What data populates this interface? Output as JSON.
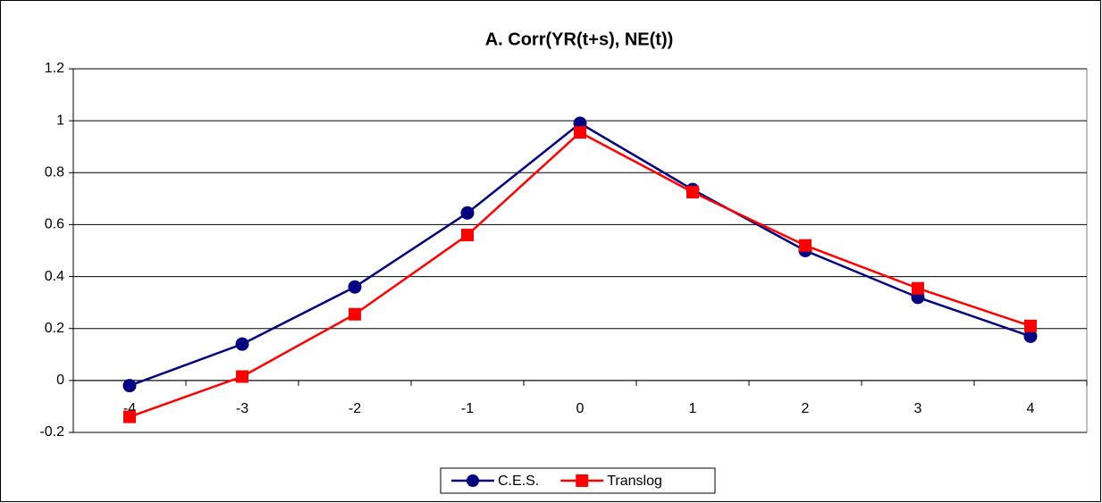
{
  "chart_data": {
    "type": "line",
    "title": "A. Corr(YR(t+s), NE(t))",
    "categories": [
      "-4",
      "-3",
      "-2",
      "-1",
      "0",
      "1",
      "2",
      "3",
      "4"
    ],
    "series": [
      {
        "name": "C.E.S.",
        "color": "#000080",
        "marker": "circle",
        "values": [
          -0.02,
          0.14,
          0.36,
          0.645,
          0.99,
          0.735,
          0.5,
          0.32,
          0.17
        ]
      },
      {
        "name": "Translog",
        "color": "#ff0000",
        "marker": "square",
        "values": [
          -0.14,
          0.015,
          0.255,
          0.56,
          0.955,
          0.725,
          0.52,
          0.355,
          0.21
        ]
      }
    ],
    "ylim": [
      -0.2,
      1.2
    ],
    "yticks": [
      -0.2,
      0,
      0.2,
      0.4,
      0.6,
      0.8,
      1,
      1.2
    ],
    "grid": true,
    "legend": "bottom"
  }
}
